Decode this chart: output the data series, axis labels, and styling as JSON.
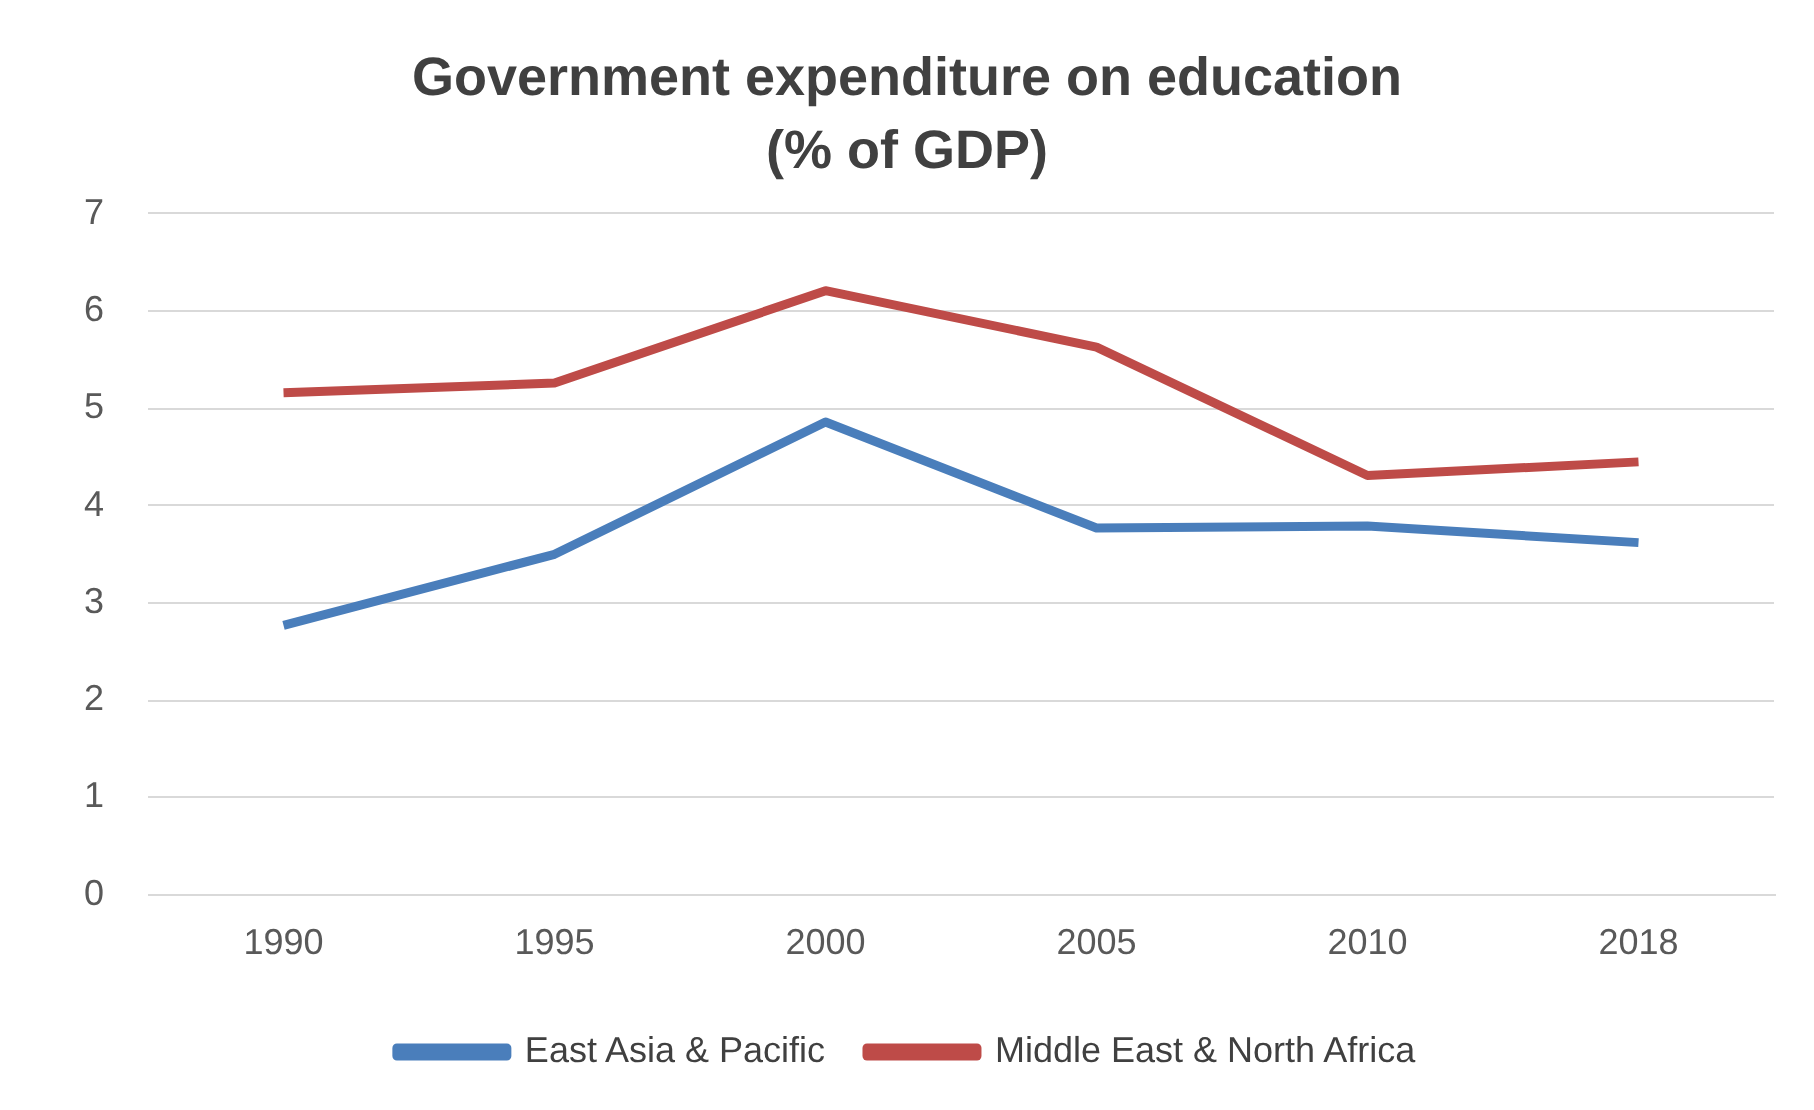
{
  "chart_data": {
    "type": "line",
    "title": "Government expenditure on education\n(% of GDP)",
    "categories": [
      "1990",
      "1995",
      "2000",
      "2005",
      "2010",
      "2018"
    ],
    "series": [
      {
        "name": "East Asia & Pacific",
        "color": "#4a7ebb",
        "values": [
          2.77,
          3.5,
          4.86,
          3.77,
          3.79,
          3.62
        ]
      },
      {
        "name": "Middle East & North Africa",
        "color": "#be4b48",
        "values": [
          5.16,
          5.26,
          6.21,
          5.63,
          4.31,
          4.45
        ]
      }
    ],
    "ylim": [
      0,
      7
    ],
    "yticks": [
      0,
      1,
      2,
      3,
      4,
      5,
      6,
      7
    ],
    "grid": "y",
    "legend": "bottom",
    "marker": "none",
    "line_style": "solid"
  }
}
